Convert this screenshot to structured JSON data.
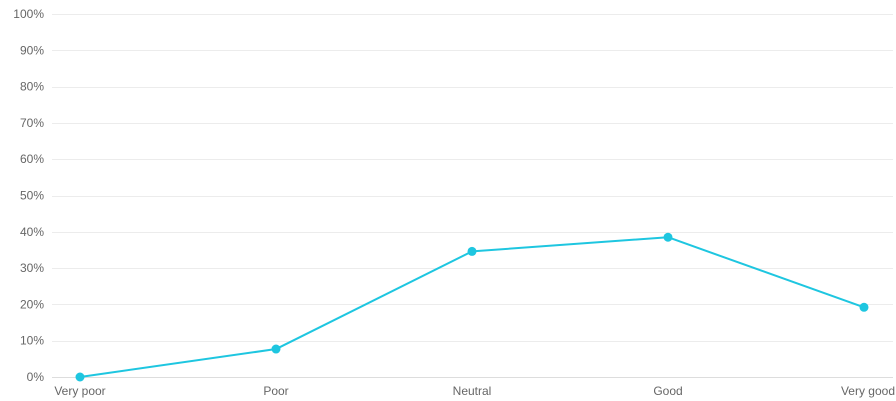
{
  "chart_data": {
    "type": "line",
    "title": "",
    "xlabel": "",
    "ylabel": "",
    "categories": [
      "Very poor",
      "Poor",
      "Neutral",
      "Good",
      "Very good"
    ],
    "series": [
      {
        "values": [
          0,
          7.7,
          34.6,
          38.5,
          19.2
        ],
        "color": "#1ec6e0"
      }
    ],
    "ylim": [
      0,
      100
    ],
    "y_ticks": [
      0,
      10,
      20,
      30,
      40,
      50,
      60,
      70,
      80,
      90,
      100
    ],
    "y_tick_labels": [
      "0%",
      "10%",
      "20%",
      "30%",
      "40%",
      "50%",
      "60%",
      "70%",
      "80%",
      "90%",
      "100%"
    ],
    "grid": true,
    "legend": "none"
  }
}
